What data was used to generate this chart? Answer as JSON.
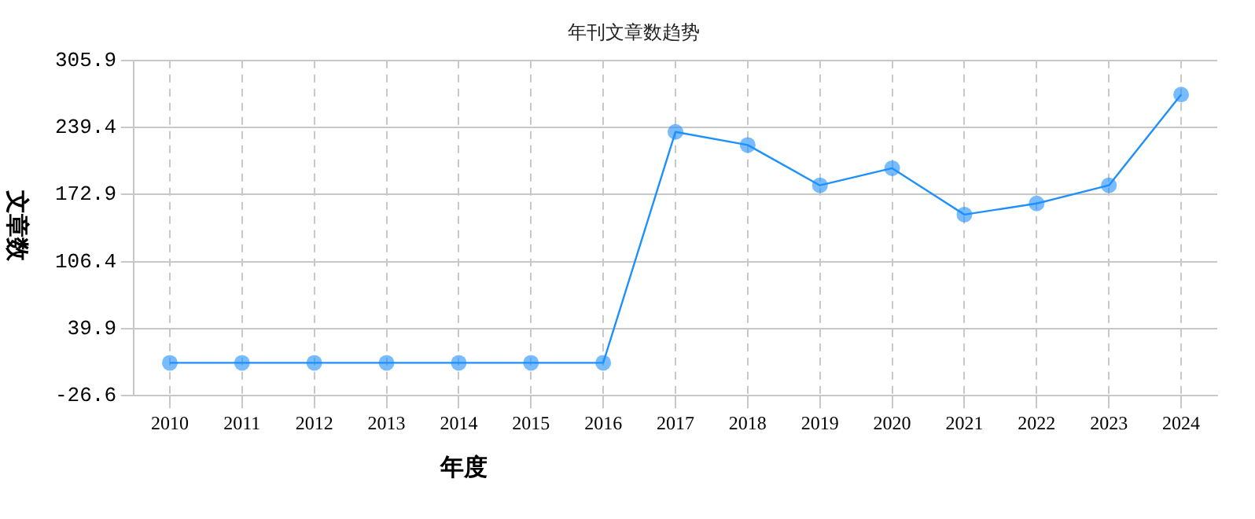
{
  "chart_data": {
    "type": "line",
    "title": "年刊文章数趋势",
    "xlabel": "年度",
    "ylabel": "文章数",
    "categories": [
      "2010",
      "2011",
      "2012",
      "2013",
      "2014",
      "2015",
      "2016",
      "2017",
      "2018",
      "2019",
      "2020",
      "2021",
      "2022",
      "2023",
      "2024"
    ],
    "series": [
      {
        "color": "#1e90ff",
        "values": [
          6,
          6,
          6,
          6,
          6,
          6,
          6,
          235,
          222,
          182,
          199,
          153,
          164,
          182,
          272
        ]
      }
    ],
    "ylim": [
      -26.6,
      305.9
    ],
    "yticks": [
      -26.6,
      39.9,
      106.4,
      172.9,
      239.4,
      305.9
    ],
    "grid": true,
    "marker": "circle",
    "line_style": "solid",
    "legend": false
  }
}
